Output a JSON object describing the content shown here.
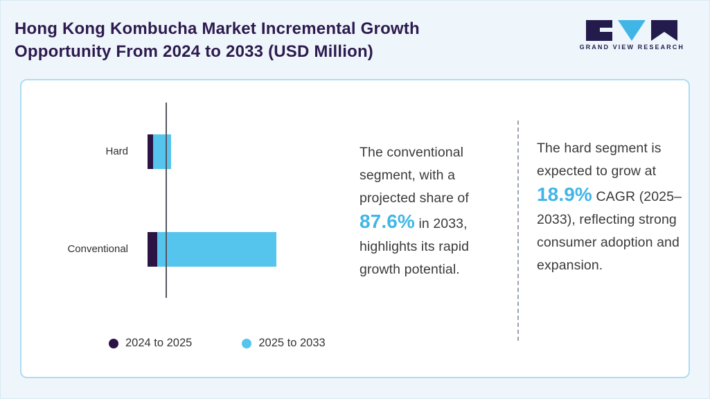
{
  "header": {
    "title": "Hong Kong Kombucha Market Incremental Growth Opportunity From 2024 to 2033 (USD Million)",
    "logo_text": "GRAND VIEW RESEARCH"
  },
  "chart_data": {
    "type": "bar",
    "orientation": "horizontal",
    "title": "Hong Kong Kombucha Market Incremental Growth Opportunity From 2024 to 2033 (USD Million)",
    "value_unit": "USD Million",
    "categories": [
      "Hard",
      "Conventional"
    ],
    "series": [
      {
        "name": "2024 to 2025",
        "color": "#2b1444",
        "values": [
          8,
          14
        ]
      },
      {
        "name": "2025 to 2033",
        "color": "#56c5ed",
        "values": [
          25,
          168
        ]
      }
    ],
    "axis_value_labels_shown": false,
    "legend_position": "bottom",
    "grid": false
  },
  "callouts": {
    "conventional": {
      "text_before": "The conventional segment, with a projected share of",
      "highlight": "87.6%",
      "text_after": "in 2033, highlights its rapid growth potential."
    },
    "hard": {
      "text_before": "The hard segment is expected to grow at",
      "highlight": "18.9%",
      "text_after": "CAGR (2025–2033), reflecting strong consumer adoption and expansion."
    }
  },
  "colors": {
    "title_navy": "#2e1a4e",
    "dark_purple": "#2b1444",
    "light_blue": "#56c5ed",
    "highlight_blue": "#41b6e6",
    "card_border": "#aedcf2"
  }
}
